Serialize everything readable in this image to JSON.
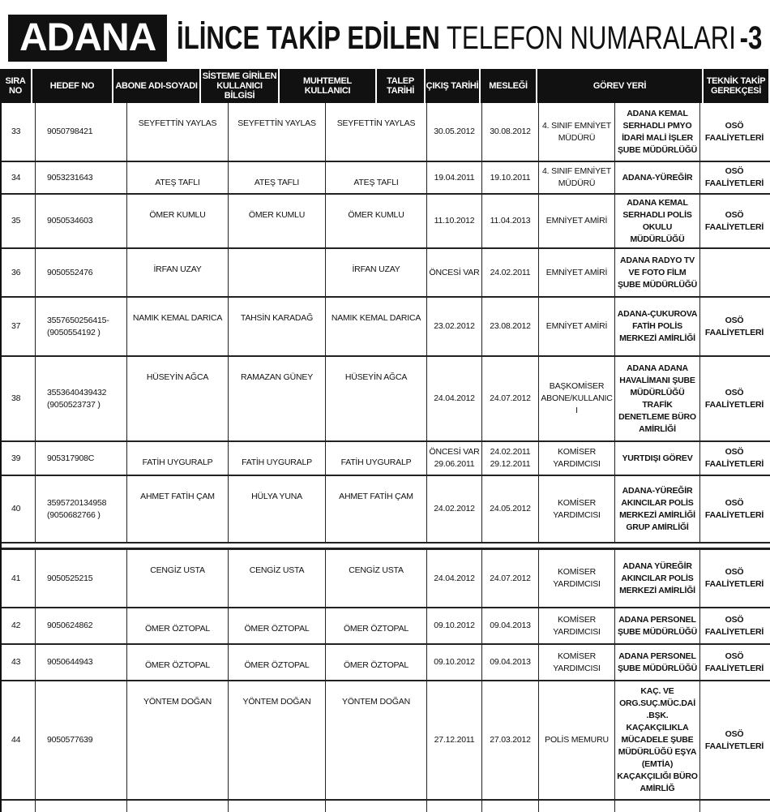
{
  "title": {
    "badge": "ADANA",
    "bold": "İLİNCE TAKİP EDİLEN",
    "regular": "TELEFON NUMARALARI",
    "number": "-3"
  },
  "columns": [
    "SIRA NO",
    "HEDEF NO",
    "ABONE ADI-SOYADI",
    "SİSTEME GİRİLEN KULLANICI BİLGİSİ",
    "MUHTEMEL KULLANICI",
    "TALEP TARİHİ",
    "ÇIKIŞ TARİHİ",
    "MESLEĞİ",
    "GÖREV YERİ",
    "TEKNİK TAKİP GEREKÇESİ"
  ],
  "rows": [
    {
      "no": "33",
      "hedef": "9050798421",
      "abone": "SEYFETTİN YAYLAS",
      "sistem": "SEYFETTİN YAYLAS",
      "muhtemel": "SEYFETTİN YAYLAS",
      "talep": "30.05.2012",
      "cikis": "30.08.2012",
      "meslek": "4. SINIF EMNİYET MÜDÜRÜ",
      "gorev": "ADANA KEMAL SERHADLI PMYO İDARİ MALİ İŞLER ŞUBE MÜDÜRLÜĞÜ",
      "teknik": "OSÖ FAALİYETLERİ"
    },
    {
      "no": "34",
      "hedef": "9053231643",
      "abone": "ATEŞ TAFLI",
      "sistem": "ATEŞ TAFLI",
      "muhtemel": "ATEŞ TAFLI",
      "talep": "19.04.2011",
      "cikis": "19.10.2011",
      "meslek": "4. SINIF EMNİYET MÜDÜRÜ",
      "gorev": "ADANA-YÜREĞİR",
      "teknik": "OSÖ FAALİYETLERİ"
    },
    {
      "no": "35",
      "hedef": "9050534603",
      "abone": "ÖMER KUMLU",
      "sistem": "ÖMER KUMLU",
      "muhtemel": "ÖMER KUMLU",
      "talep": "11.10.2012",
      "cikis": "11.04.2013",
      "meslek": "EMNİYET AMİRİ",
      "gorev": "ADANA KEMAL SERHADLI POLİS OKULU MÜDÜRLÜĞÜ",
      "teknik": "OSÖ FAALİYETLERİ"
    },
    {
      "no": "36",
      "hedef": "9050552476",
      "abone": "İRFAN UZAY",
      "sistem": "",
      "muhtemel": "İRFAN UZAY",
      "talep": "ÖNCESİ VAR",
      "cikis": "24.02.2011",
      "meslek": "EMNİYET AMİRİ",
      "gorev": "ADANA RADYO TV VE FOTO FİLM ŞUBE MÜDÜRLÜĞÜ",
      "teknik": ""
    },
    {
      "no": "37",
      "hedef": "3557650256415- (9050554192 )",
      "abone": "NAMIK KEMAL DARICA",
      "sistem": "TAHSİN KARADAĞ",
      "muhtemel": "NAMIK KEMAL DARICA",
      "talep": "23.02.2012",
      "cikis": "23.08.2012",
      "meslek": "EMNİYET AMİRİ",
      "gorev": "ADANA-ÇUKUROVA FATİH POLİS MERKEZİ AMİRLİĞİ",
      "teknik": "OSÖ FAALİYETLERİ"
    },
    {
      "no": "38",
      "hedef": "3553640439432 (9050523737 )",
      "abone": "HÜSEYİN AĞCA",
      "sistem": "RAMAZAN GÜNEY",
      "muhtemel": "HÜSEYİN AĞCA",
      "talep": "24.04.2012",
      "cikis": "24.07.2012",
      "meslek": "BAŞKOMİSER ABONE/KULLANIC I",
      "gorev": "ADANA ADANA HAVALİMANI ŞUBE MÜDÜRLÜĞÜ TRAFİK DENETLEME BÜRO AMİRLİĞİ",
      "teknik": "OSÖ FAALİYETLERİ"
    },
    {
      "no": "39",
      "hedef": "905317908C",
      "abone": "FATİH UYGURALP",
      "sistem": "FATİH UYGURALP",
      "muhtemel": "FATİH UYGURALP",
      "talep": "ÖNCESİ VAR 29.06.2011",
      "cikis": "24.02.2011 29.12.2011",
      "meslek": "KOMİSER YARDIMCISI",
      "gorev": "YURTDIŞI GÖREV",
      "teknik": "OSÖ FAALİYETLERİ"
    },
    {
      "no": "40",
      "hedef": "3595720134958 (9050682766 )",
      "abone": "AHMET FATİH ÇAM",
      "sistem": "HÜLYA YUNA",
      "muhtemel": "AHMET FATİH ÇAM",
      "talep": "24.02.2012",
      "cikis": "24.05.2012",
      "meslek": "KOMİSER YARDIMCISI",
      "gorev": "ADANA-YÜREĞİR AKINCILAR POLİS MERKEZİ AMİRLİĞİ GRUP AMİRLİĞİ",
      "teknik": "OSÖ FAALİYETLERİ"
    },
    {
      "no": "41",
      "hedef": "9050525215",
      "abone": "CENGİZ USTA",
      "sistem": "CENGİZ USTA",
      "muhtemel": "CENGİZ USTA",
      "talep": "24.04.2012",
      "cikis": "24.07.2012",
      "meslek": "KOMİSER YARDIMCISI",
      "gorev": "ADANA YÜREĞİR AKINCILAR POLİS MERKEZİ AMİRLİĞİ",
      "teknik": "OSÖ FAALİYETLERİ"
    },
    {
      "no": "42",
      "hedef": "9050624862",
      "abone": "ÖMER ÖZTOPAL",
      "sistem": "ÖMER ÖZTOPAL",
      "muhtemel": "ÖMER ÖZTOPAL",
      "talep": "09.10.2012",
      "cikis": "09.04.2013",
      "meslek": "KOMİSER YARDIMCISI",
      "gorev": "ADANA PERSONEL ŞUBE MÜDÜRLÜĞÜ",
      "teknik": "OSÖ FAALİYETLERİ"
    },
    {
      "no": "43",
      "hedef": "9050644943",
      "abone": "ÖMER ÖZTOPAL",
      "sistem": "ÖMER ÖZTOPAL",
      "muhtemel": "ÖMER ÖZTOPAL",
      "talep": "09.10.2012",
      "cikis": "09.04.2013",
      "meslek": "KOMİSER YARDIMCISI",
      "gorev": "ADANA PERSONEL ŞUBE MÜDÜRLÜĞÜ",
      "teknik": "OSÖ FAALİYETLERİ"
    },
    {
      "no": "44",
      "hedef": "9050577639",
      "abone": "YÖNTEM DOĞAN",
      "sistem": "YÖNTEM DOĞAN",
      "muhtemel": "YÖNTEM DOĞAN",
      "talep": "27.12.2011",
      "cikis": "27.03.2012",
      "meslek": "POLİS MEMURU",
      "gorev": "KAÇ. VE ORG.SUÇ.MÜC.DAİ .BŞK. KAÇAKÇILIKLA MÜCADELE ŞUBE MÜDÜRLÜĞÜ EŞYA (EMTİA) KAÇAKÇILIĞI BÜRO AMİRLİĞ",
      "teknik": "OSÖ FAALİYETLERİ"
    }
  ]
}
